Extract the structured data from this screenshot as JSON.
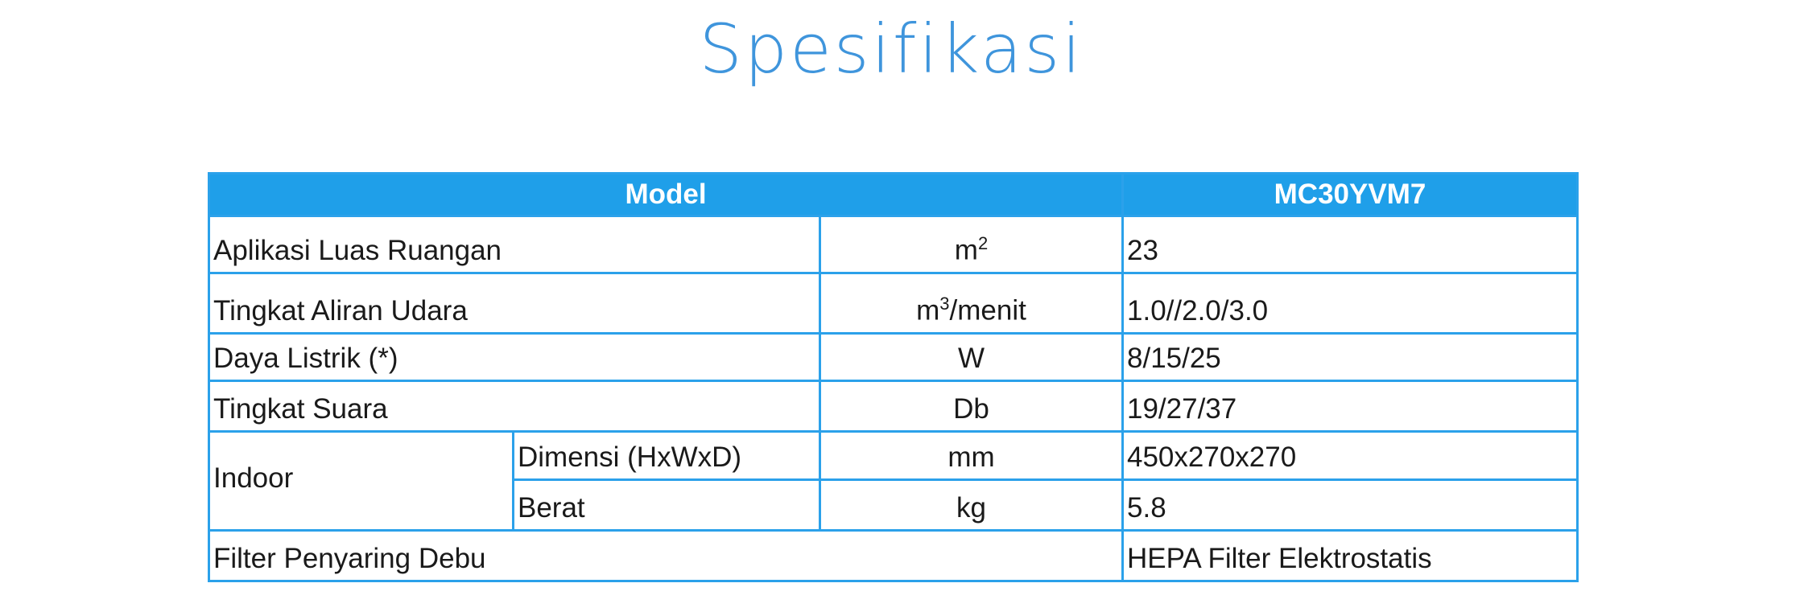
{
  "title": "Spesifikasi",
  "table": {
    "header": {
      "label": "Model",
      "value": "MC30YVM7"
    },
    "rows": [
      {
        "label": "Aplikasi Luas Ruangan",
        "unit_base": "m",
        "unit_sup": "2",
        "unit_rest": "",
        "value": "23"
      },
      {
        "label": "Tingkat Aliran Udara",
        "unit_base": "m",
        "unit_sup": "3",
        "unit_rest": "/menit",
        "value": "1.0//2.0/3.0"
      },
      {
        "label": "Daya Listrik (*)",
        "unit": "W",
        "value": "8/15/25"
      },
      {
        "label": "Tingkat Suara",
        "unit": "Db",
        "value": "19/27/37"
      },
      {
        "group": "Indoor",
        "label": "Dimensi (HxWxD)",
        "unit": "mm",
        "value": "450x270x270"
      },
      {
        "label": "Berat",
        "unit": "kg",
        "value": "5.8"
      },
      {
        "label": "Filter Penyaring Debu",
        "value": "HEPA Filter Elektrostatis"
      }
    ]
  },
  "colors": {
    "accent": "#1f9fe9",
    "title": "#3f95dc"
  }
}
